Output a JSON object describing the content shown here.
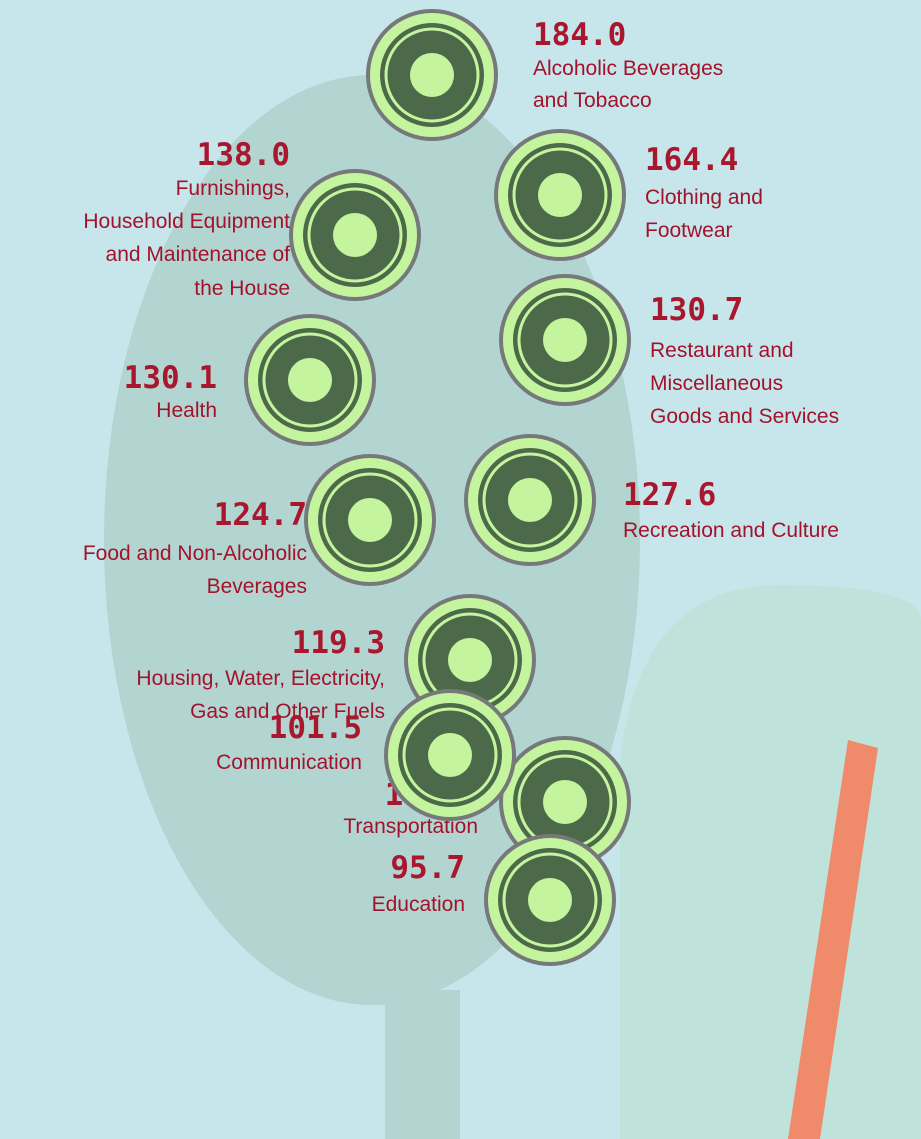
{
  "items": [
    {
      "value": "184.0",
      "lines": [
        "Alcoholic Beverages",
        "and Tobacco"
      ]
    },
    {
      "value": "164.4",
      "lines": [
        "Clothing and",
        "Footwear"
      ]
    },
    {
      "value": "138.0",
      "lines": [
        "Furnishings,",
        "Household Equipment",
        "and Maintenance of",
        "the House"
      ]
    },
    {
      "value": "130.7",
      "lines": [
        "Restaurant and",
        "Miscellaneous",
        "Goods and Services"
      ]
    },
    {
      "value": "130.1",
      "lines": [
        "Health"
      ]
    },
    {
      "value": "127.6",
      "lines": [
        "Recreation and Culture"
      ]
    },
    {
      "value": "124.7",
      "lines": [
        "Food and Non-Alcoholic",
        "Beverages"
      ]
    },
    {
      "value": "119.3",
      "lines": [
        "Housing, Water, Electricity,",
        "Gas and Other Fuels"
      ]
    },
    {
      "value": "103.8",
      "lines": [
        "Transportation"
      ]
    },
    {
      "value": "101.5",
      "lines": [
        "Communication"
      ]
    },
    {
      "value": "95.7",
      "lines": [
        "Education"
      ]
    }
  ]
}
